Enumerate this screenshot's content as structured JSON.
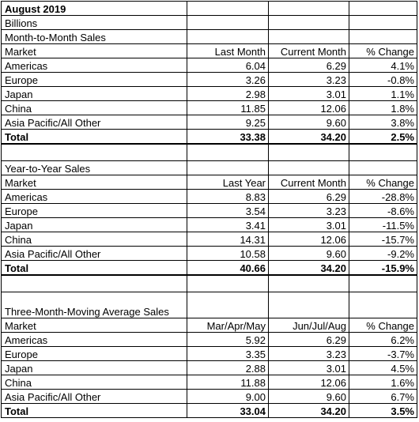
{
  "title": "August 2019",
  "unit": "Billions",
  "sections": [
    {
      "heading": "Month-to-Month Sales",
      "columns": [
        "Market",
        "Last Month",
        "Current Month",
        "% Change"
      ],
      "rows": [
        [
          "Americas",
          "6.04",
          "6.29",
          "4.1%"
        ],
        [
          "Europe",
          "3.26",
          "3.23",
          "-0.8%"
        ],
        [
          "Japan",
          "2.98",
          "3.01",
          "1.1%"
        ],
        [
          "China",
          "11.85",
          "12.06",
          "1.8%"
        ],
        [
          "Asia Pacific/All Other",
          "9.25",
          "9.60",
          "3.8%"
        ]
      ],
      "total": [
        "Total",
        "33.38",
        "34.20",
        "2.5%"
      ]
    },
    {
      "heading": "Year-to-Year Sales",
      "columns": [
        "Market",
        "Last Year",
        "Current Month",
        "% Change"
      ],
      "rows": [
        [
          "Americas",
          "8.83",
          "6.29",
          "-28.8%"
        ],
        [
          "Europe",
          "3.54",
          "3.23",
          "-8.6%"
        ],
        [
          "Japan",
          "3.41",
          "3.01",
          "-11.5%"
        ],
        [
          "China",
          "14.31",
          "12.06",
          "-15.7%"
        ],
        [
          "Asia Pacific/All Other",
          "10.58",
          "9.60",
          "-9.2%"
        ]
      ],
      "total": [
        "Total",
        "40.66",
        "34.20",
        "-15.9%"
      ]
    },
    {
      "heading": "Three-Month-Moving Average Sales",
      "columns": [
        "Market",
        "Mar/Apr/May",
        "Jun/Jul/Aug",
        "% Change"
      ],
      "rows": [
        [
          "Americas",
          "5.92",
          "6.29",
          "6.2%"
        ],
        [
          "Europe",
          "3.35",
          "3.23",
          "-3.7%"
        ],
        [
          "Japan",
          "2.88",
          "3.01",
          "4.5%"
        ],
        [
          "China",
          "11.88",
          "12.06",
          "1.6%"
        ],
        [
          "Asia Pacific/All Other",
          "9.00",
          "9.60",
          "6.7%"
        ]
      ],
      "total": [
        "Total",
        "33.04",
        "34.20",
        "3.5%"
      ]
    }
  ]
}
